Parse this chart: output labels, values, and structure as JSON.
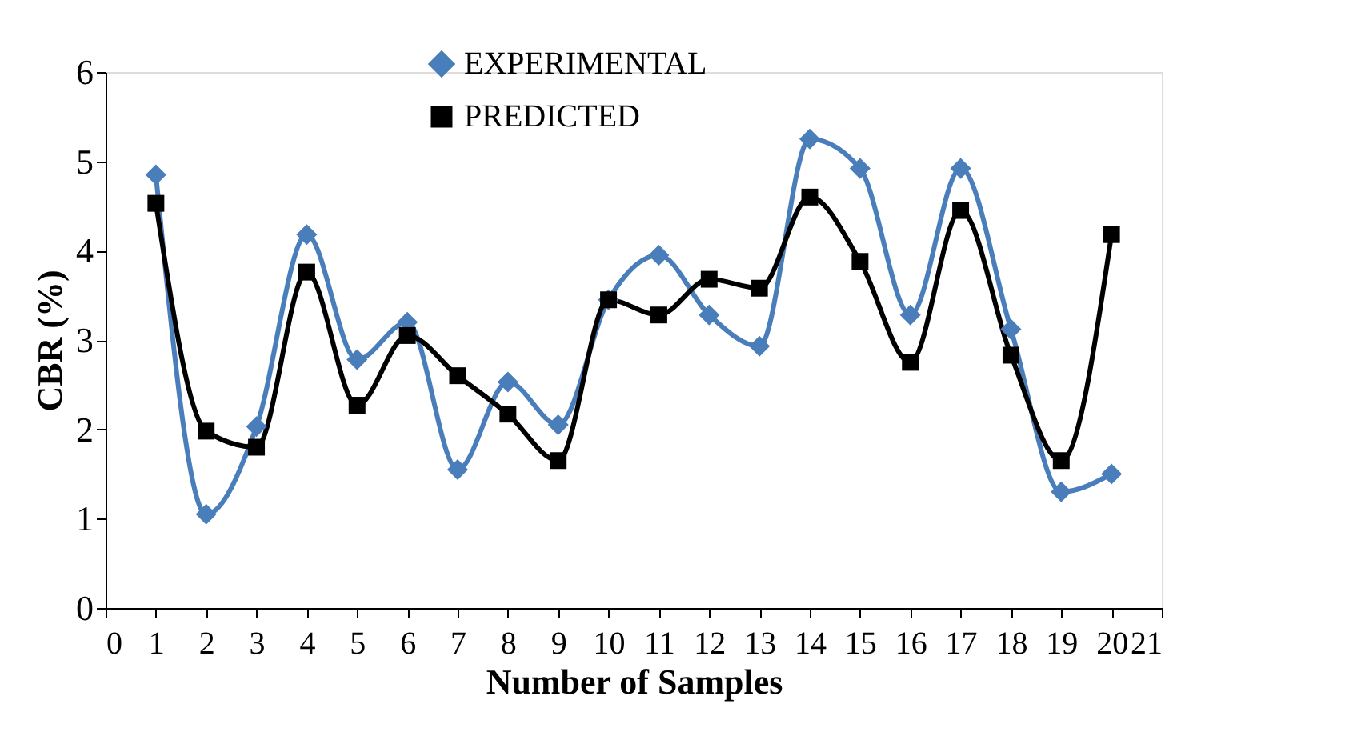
{
  "chart_data": {
    "type": "line",
    "xlabel": "Number of Samples",
    "ylabel": "CBR  (%)",
    "x": [
      1,
      2,
      3,
      4,
      5,
      6,
      7,
      8,
      9,
      10,
      11,
      12,
      13,
      14,
      15,
      16,
      17,
      18,
      19,
      20
    ],
    "series": [
      {
        "name": "EXPERIMENTAL",
        "color": "#4a7ebb",
        "marker": "diamond",
        "values": [
          4.85,
          1.05,
          2.03,
          4.18,
          2.78,
          3.2,
          1.55,
          2.53,
          2.05,
          3.45,
          3.95,
          3.28,
          2.93,
          5.25,
          4.92,
          3.28,
          4.92,
          3.12,
          1.3,
          1.5
        ]
      },
      {
        "name": "PREDICTED",
        "color": "#000000",
        "marker": "square",
        "values": [
          4.53,
          1.98,
          1.8,
          3.76,
          2.27,
          3.05,
          2.6,
          2.17,
          1.65,
          3.45,
          3.28,
          3.68,
          3.58,
          4.6,
          3.88,
          2.75,
          4.45,
          2.83,
          1.65,
          4.18
        ]
      }
    ],
    "xlim": [
      0,
      21
    ],
    "xticks": [
      0,
      1,
      2,
      3,
      4,
      5,
      6,
      7,
      8,
      9,
      10,
      11,
      12,
      13,
      14,
      15,
      16,
      17,
      18,
      19,
      20,
      21
    ],
    "ylim": [
      0,
      6
    ],
    "yticks": [
      0,
      1,
      2,
      3,
      4,
      5,
      6
    ],
    "grid": false,
    "legend": "top",
    "line_style": "solid"
  }
}
